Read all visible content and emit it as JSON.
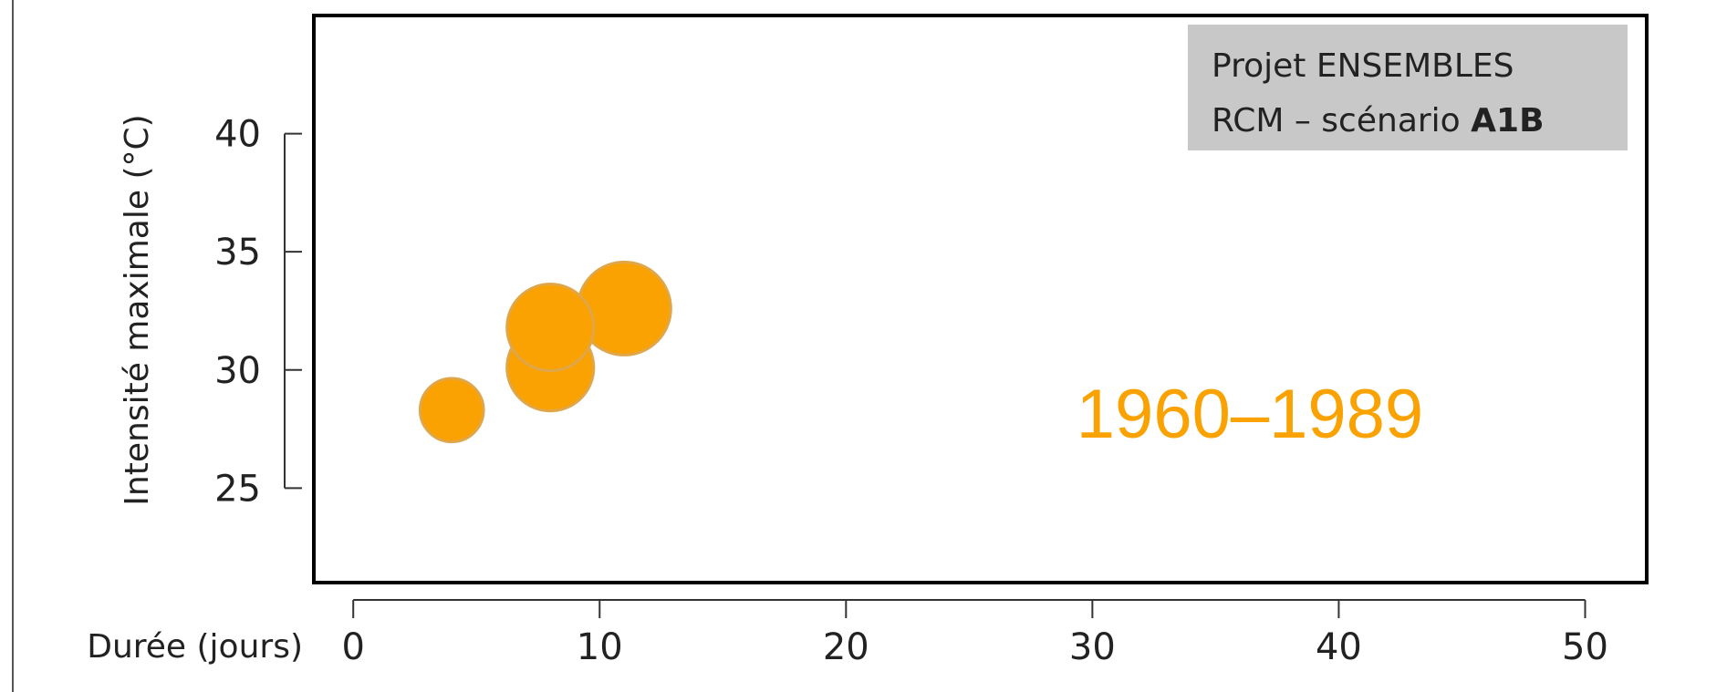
{
  "chart_data": {
    "type": "scatter",
    "xlabel": "Durée (jours)",
    "ylabel": "Intensité maximale (°C)",
    "xlim": [
      -1.6,
      52.5
    ],
    "ylim": [
      21,
      45
    ],
    "x_ticks": [
      0,
      10,
      20,
      30,
      40,
      50
    ],
    "y_ticks": [
      25,
      30,
      35,
      40
    ],
    "grid": false,
    "annotations": {
      "period": "1960–1989",
      "info_line1": "Projet ENSEMBLES",
      "info_line2_prefix": "RCM – scénario ",
      "info_line2_bold": "A1B"
    },
    "bubble_color": "#f9a202",
    "bubble_stroke": "#e0a64a",
    "info_box_color": "#c8c8c8",
    "series": [
      {
        "points": [
          {
            "x": 4,
            "y": 28.3,
            "size": 0.6
          },
          {
            "x": 8,
            "y": 30.1,
            "size": 0.82
          },
          {
            "x": 11,
            "y": 32.6,
            "size": 0.88
          },
          {
            "x": 8,
            "y": 31.8,
            "size": 0.82
          }
        ]
      }
    ]
  }
}
